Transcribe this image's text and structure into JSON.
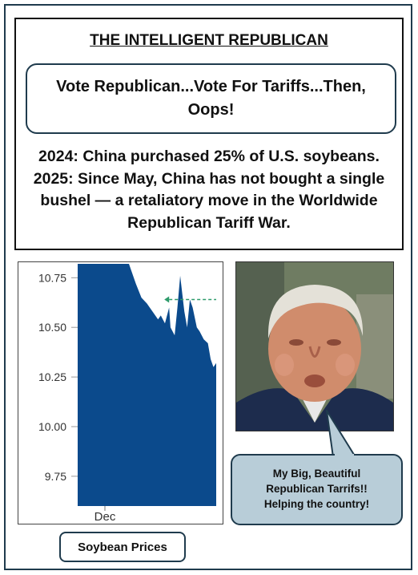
{
  "poster": {
    "title": "THE INTELLIGENT REPUBLICAN",
    "headline": "Vote Republican...Vote For Tariffs...Then, Oops!",
    "body_lines": [
      "2024: China purchased 25% of U.S. soybeans.",
      "2025: Since May, China has not bought a single",
      "bushel — a retaliatory move in the Worldwide",
      "Republican Tariff War."
    ],
    "caption": "Soybean Prices",
    "speech_bubble_lines": [
      "My Big, Beautiful",
      "Republican Tarrifs!!",
      "Helping the country!"
    ]
  },
  "photo": {
    "icon": "man-portrait-photo"
  },
  "chart_data": {
    "type": "area",
    "y_ticks": [
      "10.75",
      "10.50",
      "10.25",
      "10.00",
      "9.75"
    ],
    "y_tick_values": [
      10.75,
      10.5,
      10.25,
      10.0,
      9.75
    ],
    "x_ticks": [
      "Dec"
    ],
    "ylim": [
      9.6,
      10.82
    ],
    "fill_color": "#0b4a8c",
    "reference_color": "#2e9b6b",
    "reference_value": 10.64,
    "series": [
      {
        "x": [
          0,
          0.37,
          0.42,
          0.46,
          0.5,
          0.54,
          0.58,
          0.6,
          0.63,
          0.66,
          0.67,
          0.7,
          0.72,
          0.74,
          0.77,
          0.79,
          0.81,
          0.83,
          0.86,
          0.88,
          0.91,
          0.94,
          0.96,
          0.98,
          1.0
        ],
        "values": [
          10.82,
          10.82,
          10.72,
          10.65,
          10.62,
          10.58,
          10.54,
          10.56,
          10.52,
          10.6,
          10.5,
          10.46,
          10.6,
          10.76,
          10.58,
          10.5,
          10.64,
          10.6,
          10.5,
          10.48,
          10.44,
          10.42,
          10.34,
          10.3,
          10.32
        ]
      }
    ]
  }
}
